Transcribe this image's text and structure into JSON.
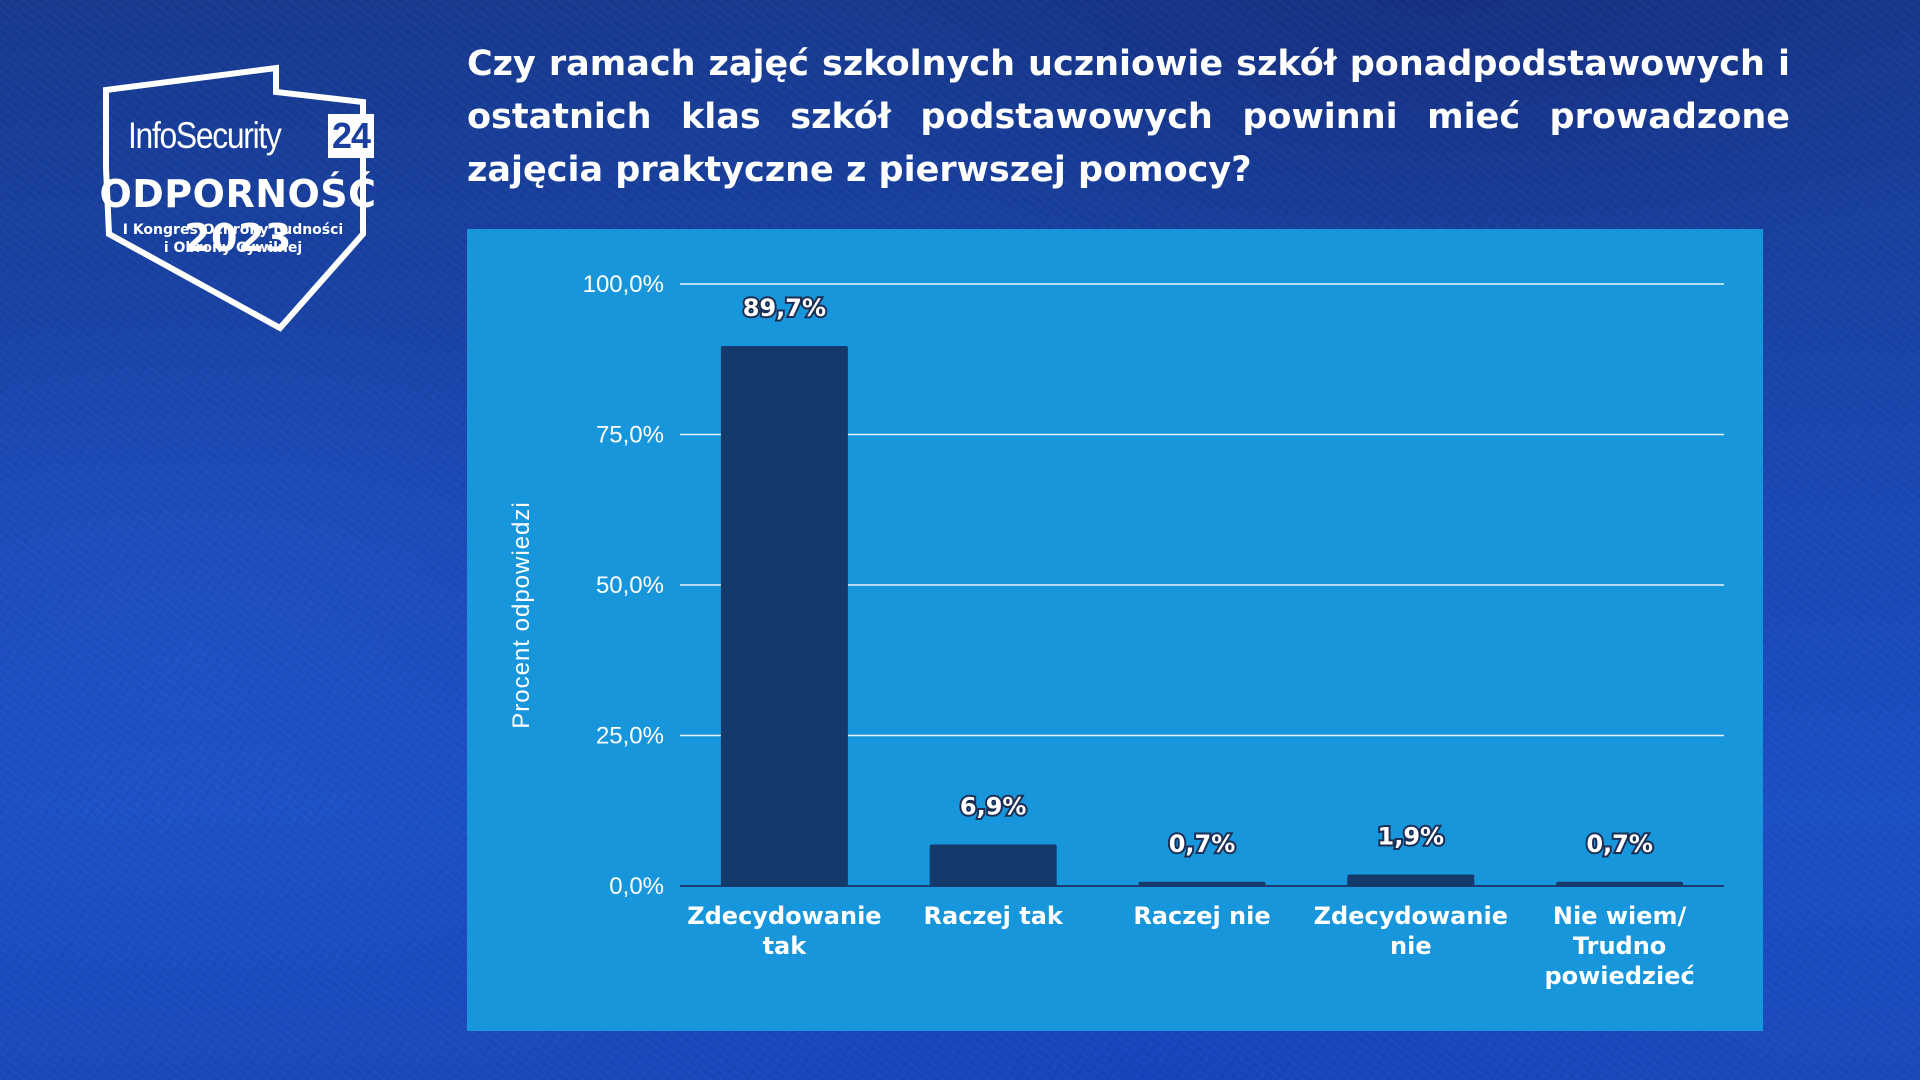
{
  "logo": {
    "brand": "InfoSecurity",
    "brand_number": "24",
    "event": "ODPORNOŚĆ 2023",
    "subtitle_line1": "I Kongres Ochrony Ludności",
    "subtitle_line2": "i Obrony Cywilnej"
  },
  "question": "Czy ramach zajęć szkolnych uczniowie szkół ponadpodstawowych i ostatnich klas szkół podstawowych powinni mieć prowadzone zajęcia praktyczne z pierwszej pomocy?",
  "colors": {
    "background": "#1a47b3",
    "panel": "#1796dc",
    "bar": "#143a6b",
    "text": "#ffffff"
  },
  "chart_data": {
    "type": "bar",
    "title": "",
    "xlabel": "",
    "ylabel": "Procent odpowiedzi",
    "categories": [
      [
        "Zdecydowanie",
        "tak"
      ],
      [
        "Raczej tak"
      ],
      [
        "Raczej nie"
      ],
      [
        "Zdecydowanie",
        "nie"
      ],
      [
        "Nie wiem/",
        "Trudno",
        "powiedzieć"
      ]
    ],
    "values": [
      89.7,
      6.9,
      0.7,
      1.9,
      0.7
    ],
    "data_labels": [
      "89,7%",
      "6,9%",
      "0,7%",
      "1,9%",
      "0,7%"
    ],
    "ylim": [
      0,
      100
    ],
    "yticks": [
      0,
      25,
      50,
      75,
      100
    ],
    "ytick_labels": [
      "0,0%",
      "25,0%",
      "50,0%",
      "75,0%",
      "100,0%"
    ],
    "grid": true,
    "legend": "none"
  }
}
